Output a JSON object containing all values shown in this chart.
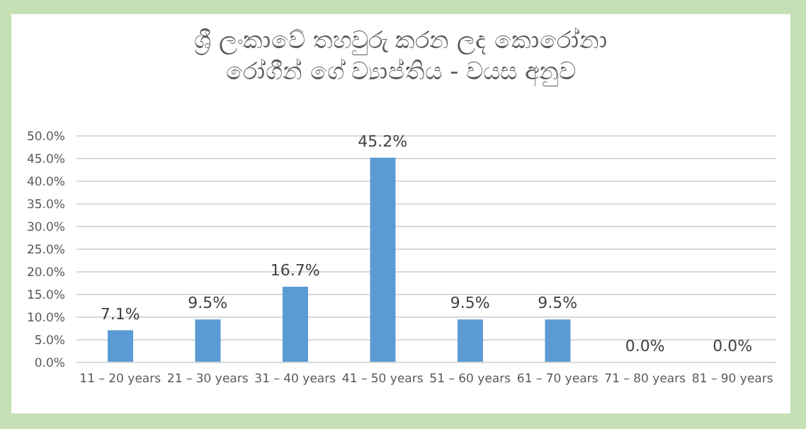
{
  "chart_data": {
    "type": "bar",
    "title": "ශ්‍රී ලංකාවේ තහවුරු කරන ලද කොරෝනා\nරෝගීන් ගේ ව්‍යාප්තිය - වයස අනුව",
    "categories": [
      "11 – 20 years",
      "21 – 30 years",
      "31 – 40 years",
      "41 – 50 years",
      "51 – 60 years",
      "61 – 70 years",
      "71 – 80 years",
      "81 – 90 years"
    ],
    "values": [
      7.1,
      9.5,
      16.7,
      45.2,
      9.5,
      9.5,
      0,
      0
    ],
    "value_labels": [
      "7.1%",
      "9.5%",
      "16.7%",
      "45.2%",
      "9.5%",
      "9.5%",
      "0.0%",
      "0.0%"
    ],
    "color": "#5b9bd5",
    "ylim": [
      0,
      50
    ],
    "yticks": [
      {
        "value": 0,
        "label": "0.0%"
      },
      {
        "value": 5,
        "label": "5.0%"
      },
      {
        "value": 10,
        "label": "10.0%"
      },
      {
        "value": 15,
        "label": "15.0%"
      },
      {
        "value": 20,
        "label": "20.0%"
      },
      {
        "value": 25,
        "label": "25.0%"
      },
      {
        "value": 30,
        "label": "30.0%"
      },
      {
        "value": 35,
        "label": "35.0%"
      },
      {
        "value": 40,
        "label": "40.0%"
      },
      {
        "value": 45,
        "label": "45.0%"
      },
      {
        "value": 50,
        "label": "50.0%"
      }
    ],
    "grid": "y"
  }
}
